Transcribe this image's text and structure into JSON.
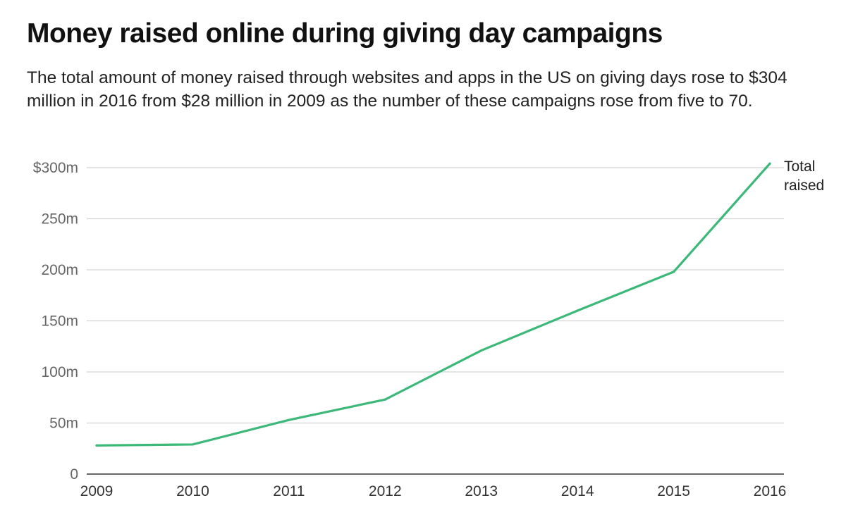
{
  "chart_data": {
    "type": "line",
    "title": "Money raised online during giving day campaigns",
    "subtitle": "The total amount of money raised through websites and apps in the US on giving days rose to $304 million in 2016 from $28 million in 2009 as the number of these campaigns rose from five to 70.",
    "x": [
      2009,
      2010,
      2011,
      2012,
      2013,
      2014,
      2015,
      2016
    ],
    "x_tick_labels": [
      "2009",
      "2010",
      "2011",
      "2012",
      "2013",
      "2014",
      "2015",
      "2016"
    ],
    "y_ticks": [
      0,
      50,
      100,
      150,
      200,
      250,
      300
    ],
    "y_tick_labels": [
      "0",
      "50m",
      "100m",
      "150m",
      "200m",
      "250m",
      "$300m"
    ],
    "ylim": [
      0,
      300
    ],
    "xlabel": "",
    "ylabel": "",
    "grid": true,
    "series": [
      {
        "name": "Total raised",
        "values": [
          28,
          29,
          53,
          73,
          121,
          160,
          198,
          304
        ],
        "color": "#3cb878"
      }
    ]
  }
}
